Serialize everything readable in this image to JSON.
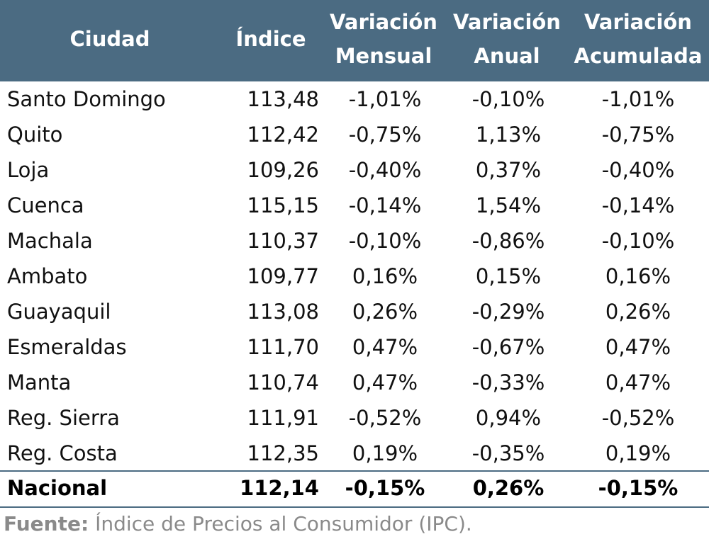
{
  "table": {
    "columns": [
      [
        "Ciudad"
      ],
      [
        "Índice"
      ],
      [
        "Variación",
        "Mensual"
      ],
      [
        "Variación",
        "Anual"
      ],
      [
        "Variación",
        "Acumulada"
      ]
    ],
    "rows": [
      [
        "Santo Domingo",
        "113,48",
        "-1,01%",
        "-0,10%",
        "-1,01%"
      ],
      [
        "Quito",
        "112,42",
        "-0,75%",
        "1,13%",
        "-0,75%"
      ],
      [
        "Loja",
        "109,26",
        "-0,40%",
        "0,37%",
        "-0,40%"
      ],
      [
        "Cuenca",
        "115,15",
        "-0,14%",
        "1,54%",
        "-0,14%"
      ],
      [
        "Machala",
        "110,37",
        "-0,10%",
        "-0,86%",
        "-0,10%"
      ],
      [
        "Ambato",
        "109,77",
        "0,16%",
        "0,15%",
        "0,16%"
      ],
      [
        "Guayaquil",
        "113,08",
        "0,26%",
        "-0,29%",
        "0,26%"
      ],
      [
        "Esmeraldas",
        "111,70",
        "0,47%",
        "-0,67%",
        "0,47%"
      ],
      [
        "Manta",
        "110,74",
        "0,47%",
        "-0,33%",
        "0,47%"
      ],
      [
        "Reg. Sierra",
        "111,91",
        "-0,52%",
        "0,94%",
        "-0,52%"
      ],
      [
        "Reg. Costa",
        "112,35",
        "0,19%",
        "-0,35%",
        "0,19%"
      ]
    ],
    "total": [
      "Nacional",
      "112,14",
      "-0,15%",
      "0,26%",
      "-0,15%"
    ]
  },
  "source": {
    "label": "Fuente:",
    "text": "Índice de Precios al Consumidor (IPC)."
  }
}
